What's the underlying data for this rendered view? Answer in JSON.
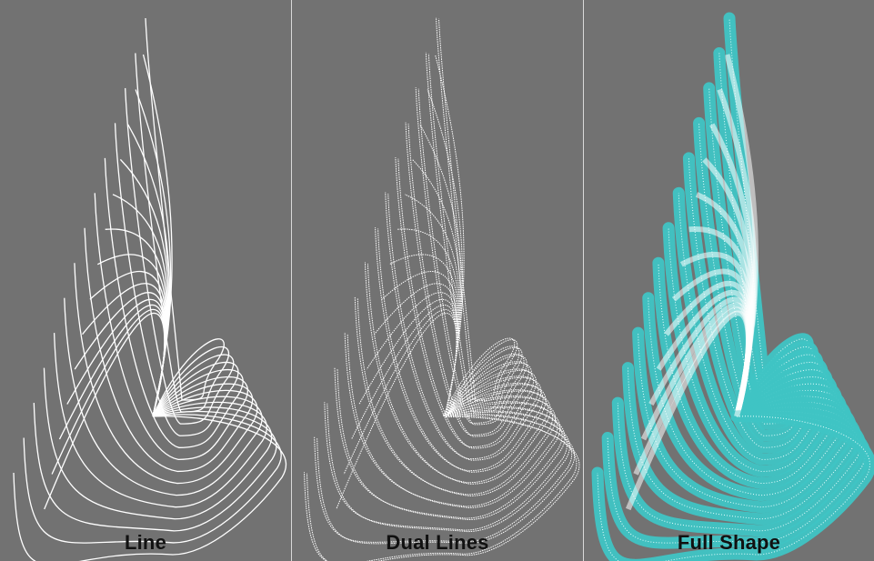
{
  "panels": [
    {
      "label": "Line",
      "style": "line"
    },
    {
      "label": "Dual Lines",
      "style": "dual"
    },
    {
      "label": "Full Shape",
      "style": "shape"
    }
  ],
  "colors": {
    "background": "#727272",
    "stroke": "#ffffff",
    "shape_fill": "#3fc4c4",
    "divider": "#d9d9d9",
    "caption": "#111111"
  }
}
